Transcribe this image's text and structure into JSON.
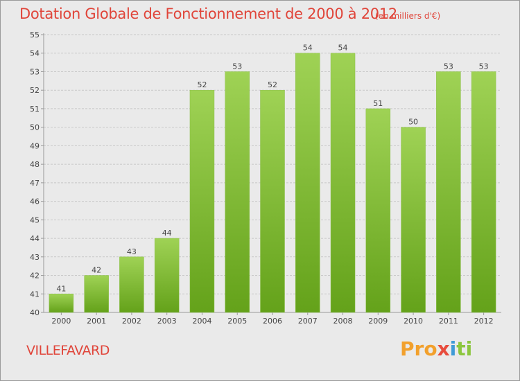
{
  "title": "Dotation Globale de Fonctionnement de 2000 à 2012",
  "subtitle": "(en milliers d'€)",
  "commune": "VILLEFAVARD",
  "logo": {
    "text": "Proxiti",
    "letters": [
      "Pro",
      "x",
      "i",
      "ti"
    ]
  },
  "colors": {
    "bar_top": "#9fd255",
    "bar_bottom": "#64a21a",
    "title": "#e0453a",
    "grid": "#c8c8c8",
    "background": "#eaeaea"
  },
  "chart_data": {
    "type": "bar",
    "title": "Dotation Globale de Fonctionnement de 2000 à 2012",
    "subtitle": "(en milliers d'€)",
    "xlabel": "",
    "ylabel": "",
    "categories": [
      "2000",
      "2001",
      "2002",
      "2003",
      "2004",
      "2005",
      "2006",
      "2007",
      "2008",
      "2009",
      "2010",
      "2011",
      "2012"
    ],
    "values": [
      41,
      42,
      43,
      44,
      52,
      53,
      52,
      54,
      54,
      51,
      50,
      53,
      53
    ],
    "ylim": [
      40,
      55
    ],
    "yticks": [
      40,
      41,
      42,
      43,
      44,
      45,
      46,
      47,
      48,
      49,
      50,
      51,
      52,
      53,
      54,
      55
    ],
    "grid": true,
    "legend": "none"
  }
}
